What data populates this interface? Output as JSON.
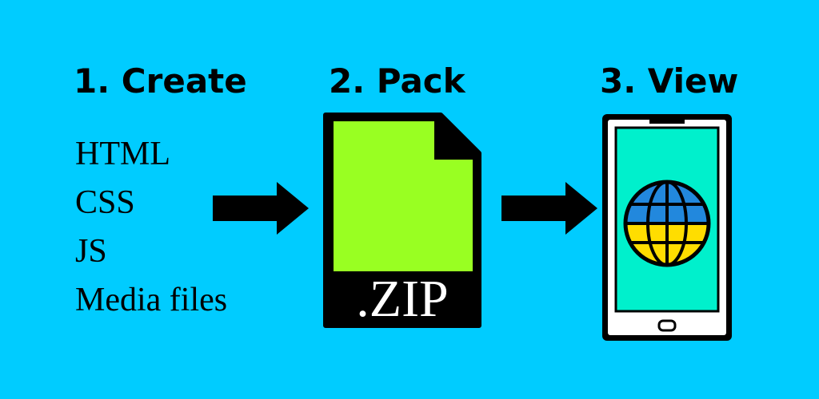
{
  "steps": [
    {
      "title": "1. Create"
    },
    {
      "title": "2. Pack"
    },
    {
      "title": "3. View"
    }
  ],
  "create_items": [
    "HTML",
    "CSS",
    "JS",
    "Media files"
  ],
  "pack": {
    "file_label": ".ZIP"
  },
  "icons": {
    "arrow_1": "arrow-right-icon",
    "zip": "zip-file-icon",
    "arrow_2": "arrow-right-icon",
    "phone": "smartphone-icon",
    "globe": "globe-icon"
  },
  "colors": {
    "background": "#00ccff",
    "zip_body": "#99ff22",
    "phone_screen": "#00f0cc",
    "globe_top": "#2288dd",
    "globe_bottom": "#ffdd00",
    "outline": "#000000"
  }
}
